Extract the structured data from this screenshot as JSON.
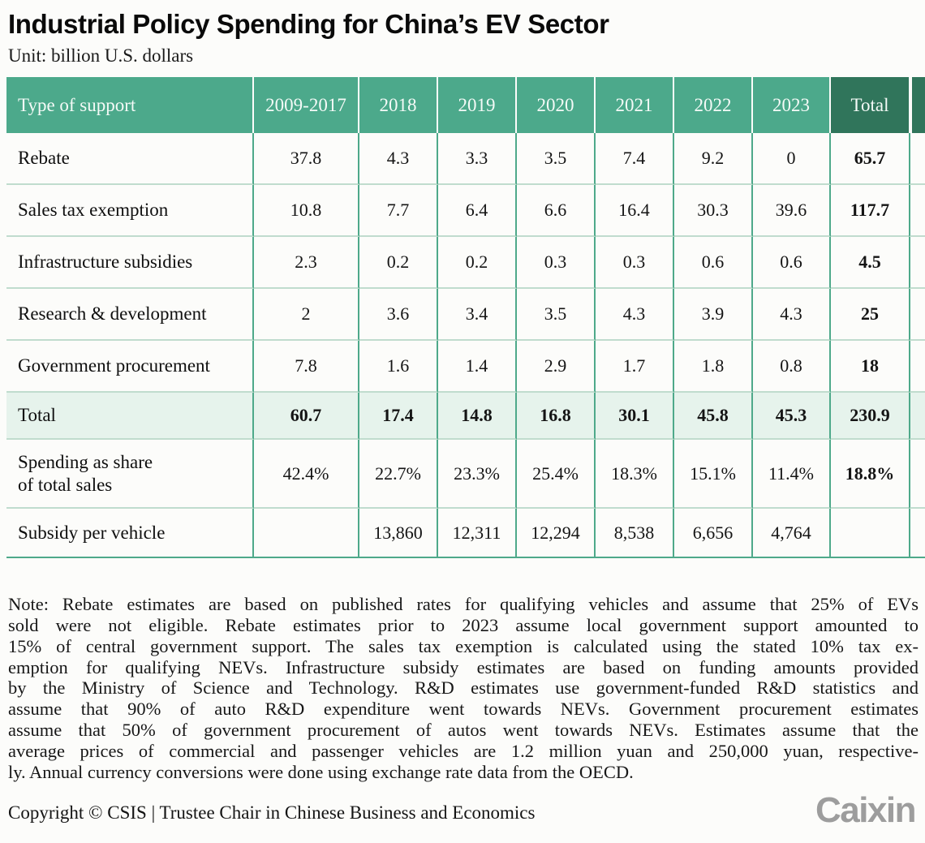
{
  "page": {
    "title": "Industrial Policy Spending for China’s EV Sector",
    "unit_label": "Unit: billion U.S. dollars"
  },
  "colors": {
    "header_green": "#4CA98B",
    "total_header_green": "#30755B",
    "total_row_bg": "#E6F3EC",
    "vertical_border": "#4EA98A",
    "horizontal_border": "#C0DCCE"
  },
  "chart_data": {
    "type": "table",
    "title": "Industrial Policy Spending for China’s EV Sector",
    "unit": "billion U.S. dollars",
    "columns": [
      "Type of support",
      "2009-2017",
      "2018",
      "2019",
      "2020",
      "2021",
      "2022",
      "2023",
      "Total"
    ],
    "rows": [
      {
        "label": "Rebate",
        "style": "data",
        "values": [
          "37.8",
          "4.3",
          "3.3",
          "3.5",
          "7.4",
          "9.2",
          "0",
          "65.7"
        ]
      },
      {
        "label": "Sales tax exemption",
        "style": "data",
        "values": [
          "10.8",
          "7.7",
          "6.4",
          "6.6",
          "16.4",
          "30.3",
          "39.6",
          "117.7"
        ]
      },
      {
        "label": "Infrastructure subsidies",
        "style": "data",
        "values": [
          "2.3",
          "0.2",
          "0.2",
          "0.3",
          "0.3",
          "0.6",
          "0.6",
          "4.5"
        ]
      },
      {
        "label": "Research & development",
        "style": "data",
        "values": [
          "2",
          "3.6",
          "3.4",
          "3.5",
          "4.3",
          "3.9",
          "4.3",
          "25"
        ]
      },
      {
        "label": "Government procurement",
        "style": "data",
        "values": [
          "7.8",
          "1.6",
          "1.4",
          "2.9",
          "1.7",
          "1.8",
          "0.8",
          "18"
        ]
      },
      {
        "label": "Total",
        "style": "total",
        "values": [
          "60.7",
          "17.4",
          "14.8",
          "16.8",
          "30.1",
          "45.8",
          "45.3",
          "230.9"
        ]
      },
      {
        "label": "Spending as share\nof total sales",
        "style": "share",
        "values": [
          "42.4%",
          "22.7%",
          "23.3%",
          "25.4%",
          "18.3%",
          "15.1%",
          "11.4%",
          "18.8%"
        ]
      },
      {
        "label": "Subsidy per vehicle",
        "style": "pervehicle",
        "values": [
          "",
          "13,860",
          "12,311",
          "12,294",
          "8,538",
          "6,656",
          "4,764",
          ""
        ]
      }
    ]
  },
  "note_lines": [
    "Note: Rebate estimates are based on published rates for qualifying vehicles and assume that 25% of EVs",
    "sold were not eligible. Rebate estimates prior to 2023 assume local government support amounted to",
    "15% of central government support. The sales tax exemption is calculated using the stated 10% tax ex-",
    "emption for qualifying NEVs. Infrastructure subsidy estimates are based on funding amounts provided",
    "by the Ministry of Science and Technology. R&D estimates use government-funded R&D statistics and",
    "assume that 90% of auto R&D expenditure went towards NEVs. Government procurement estimates",
    "assume that 50% of government procurement of autos went towards NEVs. Estimates assume that the",
    "average prices of commercial and passenger vehicles are 1.2 million yuan and 250,000 yuan, respective-",
    "ly. Annual currency conversions were done using exchange rate data from the OECD."
  ],
  "footer": {
    "copyright": "Copyright © CSIS | Trustee Chair in Chinese Business and Economics",
    "logo": "Caixin"
  }
}
